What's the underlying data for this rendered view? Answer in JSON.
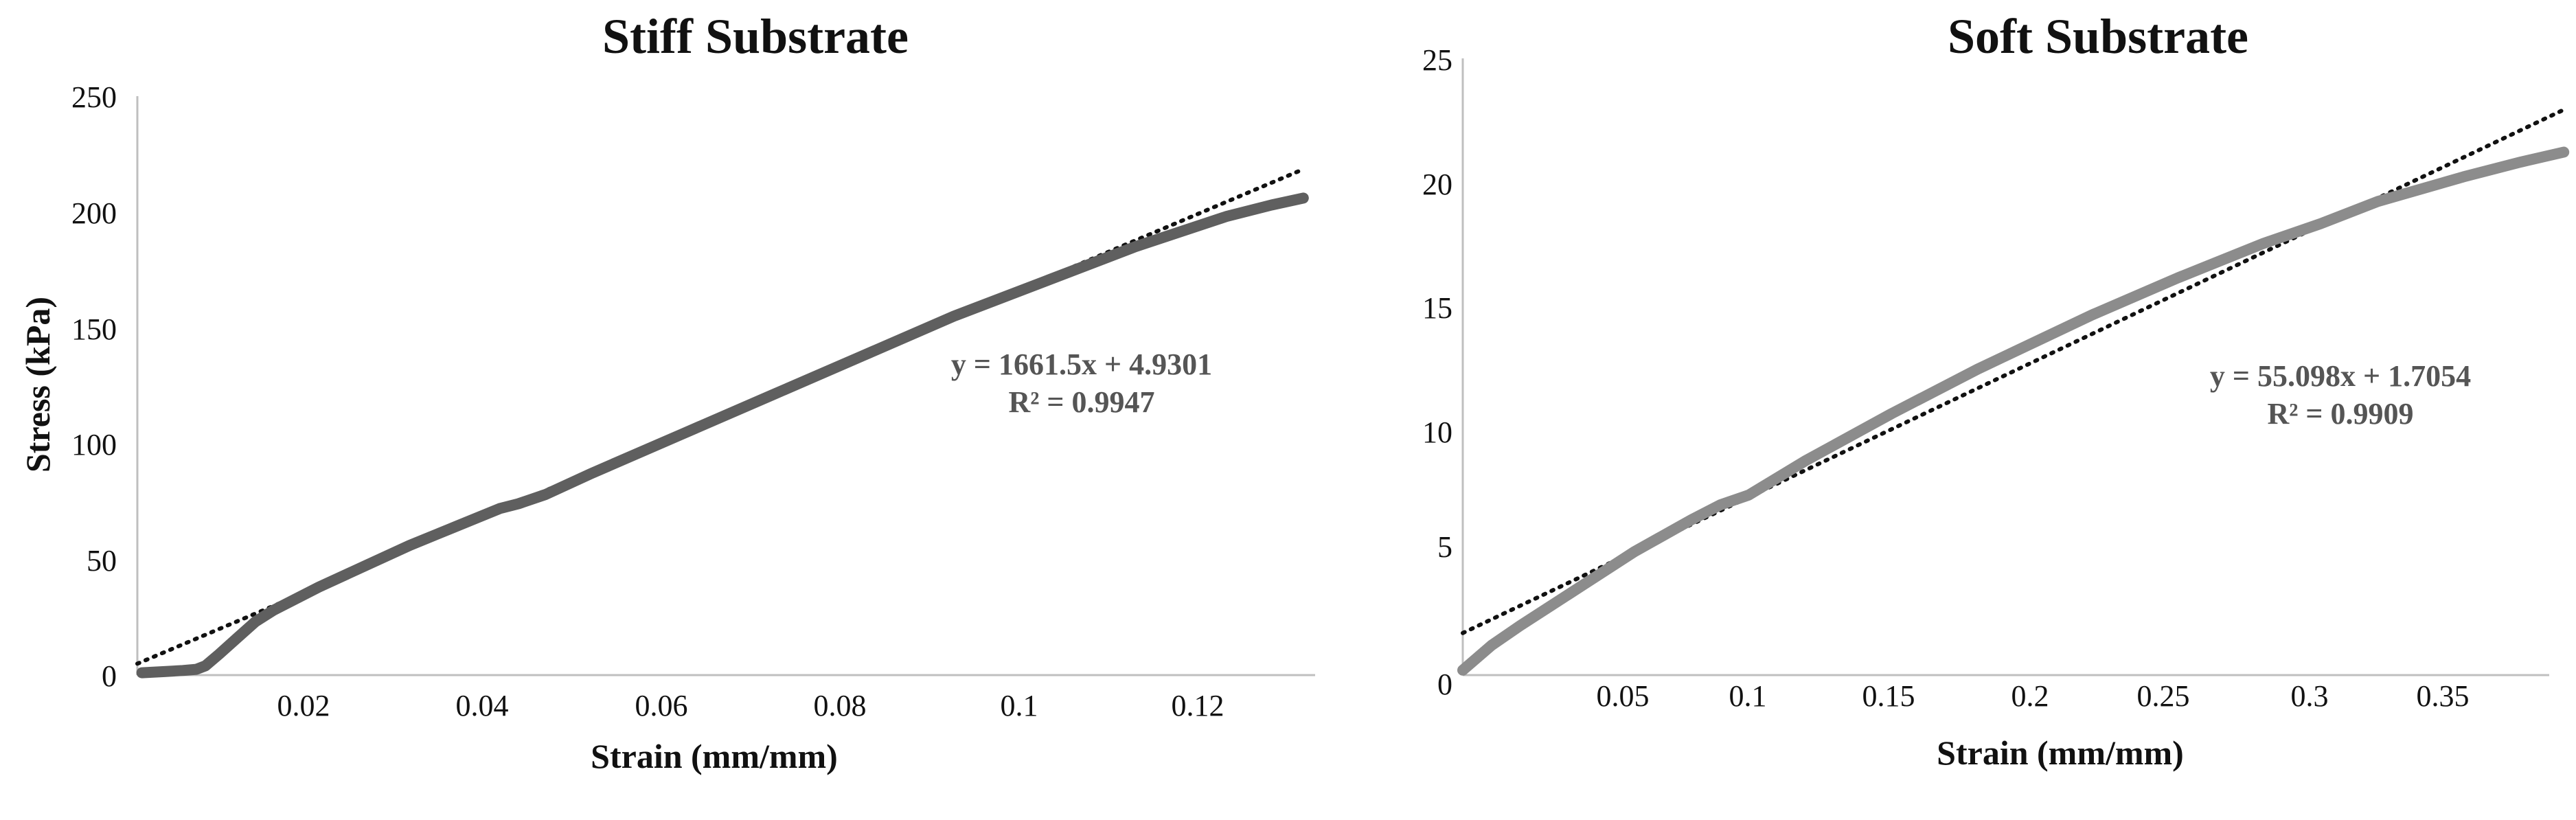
{
  "chart_data": [
    {
      "type": "line",
      "title": "Stiff Substrate",
      "xlabel": "Strain (mm/mm)",
      "ylabel": "Stress (kPa)",
      "xlim": [
        0,
        0.132
      ],
      "ylim": [
        0,
        250
      ],
      "xticks": [
        0.02,
        0.04,
        0.06,
        0.08,
        0.1,
        0.12
      ],
      "xtick_labels": [
        "0.02",
        "0.04",
        "0.06",
        "0.08",
        "0.1",
        "0.12"
      ],
      "yticks": [
        0,
        50,
        100,
        150,
        200,
        250
      ],
      "ytick_labels": [
        "0",
        "50",
        "100",
        "150",
        "200",
        "250"
      ],
      "grid": false,
      "series": [
        {
          "color": "#5f5f5f",
          "x": [
            0.0005,
            0.003,
            0.005,
            0.0065,
            0.0075,
            0.009,
            0.011,
            0.013,
            0.015,
            0.017,
            0.02,
            0.025,
            0.03,
            0.035,
            0.04,
            0.042,
            0.045,
            0.05,
            0.06,
            0.07,
            0.08,
            0.09,
            0.1,
            0.11,
            0.12,
            0.125,
            0.1285
          ],
          "y": [
            1,
            1.5,
            2,
            2.5,
            4,
            9,
            16,
            23,
            28,
            32,
            38,
            47,
            56,
            64,
            72,
            74,
            78,
            87,
            104,
            121,
            138,
            155,
            170,
            185,
            198,
            203,
            206
          ]
        }
      ],
      "trendline": {
        "slope": 1661.5,
        "intercept": 4.9301,
        "x_range": [
          0,
          0.1285
        ],
        "style": "dotted"
      },
      "annotations": [
        "y = 1661.5x + 4.9301",
        "R² = 0.9947"
      ]
    },
    {
      "type": "line",
      "title": "Soft Substrate",
      "xlabel": "Strain (mm/mm)",
      "ylabel": "",
      "xlim": [
        0,
        0.39
      ],
      "ylim": [
        0,
        25
      ],
      "xticks": [
        0.05,
        0.1,
        0.15,
        0.2,
        0.25,
        0.3,
        0.35
      ],
      "xtick_labels": [
        "0.05",
        "0.1",
        "0.15",
        "0.2",
        "0.25",
        "0.3",
        "0.35"
      ],
      "yticks": [
        0,
        5,
        10,
        15,
        20,
        25
      ],
      "ytick_labels": [
        "0",
        "5",
        "10",
        "15",
        "20",
        "25"
      ],
      "grid": false,
      "series": [
        {
          "color": "#8c8c8c",
          "x": [
            0.0,
            0.01,
            0.02,
            0.04,
            0.06,
            0.08,
            0.09,
            0.1,
            0.12,
            0.15,
            0.18,
            0.2,
            0.22,
            0.25,
            0.28,
            0.3,
            0.32,
            0.35,
            0.37,
            0.385
          ],
          "y": [
            0.2,
            1.2,
            2.0,
            3.5,
            5.0,
            6.3,
            6.9,
            7.3,
            8.7,
            10.6,
            12.4,
            13.5,
            14.6,
            16.1,
            17.5,
            18.3,
            19.2,
            20.2,
            20.8,
            21.2
          ]
        }
      ],
      "trendline": {
        "slope": 55.098,
        "intercept": 1.7054,
        "x_range": [
          0,
          0.385
        ],
        "style": "dotted"
      },
      "annotations": [
        "y = 55.098x + 1.7054",
        "R² = 0.9909"
      ]
    }
  ]
}
